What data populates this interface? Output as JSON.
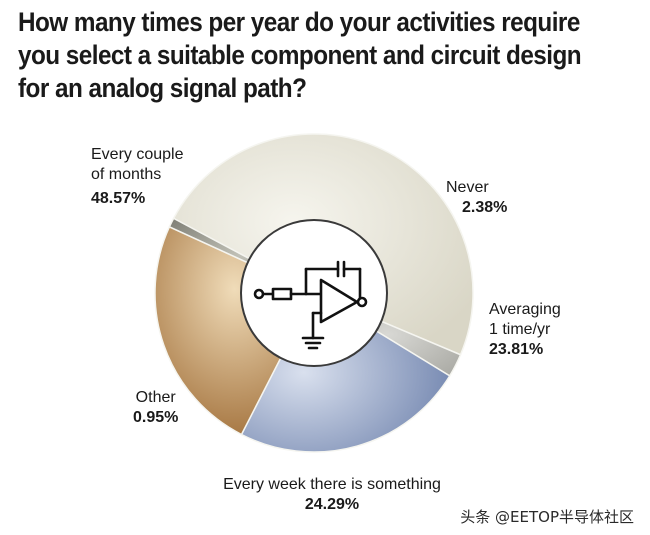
{
  "chart_data": {
    "type": "pie",
    "title": "How many times per year do your activities require you select a suitable component and circuit design for an analog signal path?",
    "title_lines": [
      "How many times per year do your activities require",
      "you select a suitable component and circuit design",
      "for an analog signal path?"
    ],
    "donut": true,
    "slices": [
      {
        "label": "Every couple of months",
        "label_lines": [
          "Every couple",
          "of months"
        ],
        "value": 48.57,
        "value_text": "48.57%",
        "color": "#e8e6da"
      },
      {
        "label": "Never",
        "label_lines": [
          "Never"
        ],
        "value": 2.38,
        "value_text": "2.38%",
        "color": "#b9b9b4"
      },
      {
        "label": "Averaging 1 time/yr",
        "label_lines": [
          "Averaging",
          "1 time/yr"
        ],
        "value": 23.81,
        "value_text": "23.81%",
        "color": "#8fa1c6"
      },
      {
        "label": "Every week there is something",
        "label_lines": [
          "Every week there is something"
        ],
        "value": 24.29,
        "value_text": "24.29%",
        "color": "#b98850"
      },
      {
        "label": "Other",
        "label_lines": [
          "Other"
        ],
        "value": 0.95,
        "value_text": "0.95%",
        "color": "#9a9a90"
      }
    ],
    "center_icon": "op-amp-integrator-icon"
  },
  "watermark": "头条 @EETOP半导体社区"
}
